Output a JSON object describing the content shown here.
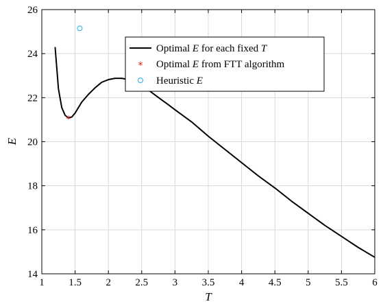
{
  "chart_data": {
    "type": "line",
    "xlabel": "T",
    "ylabel": "E",
    "xlim": [
      1,
      6
    ],
    "ylim": [
      14,
      26
    ],
    "xticks": [
      1,
      1.5,
      2,
      2.5,
      3,
      3.5,
      4,
      4.5,
      5,
      5.5,
      6
    ],
    "yticks": [
      14,
      16,
      18,
      20,
      22,
      24,
      26
    ],
    "xtick_labels": [
      "1",
      "1.5",
      "2",
      "2.5",
      "3",
      "3.5",
      "4",
      "4.5",
      "5",
      "5.5",
      "6"
    ],
    "ytick_labels": [
      "14",
      "16",
      "18",
      "20",
      "22",
      "24",
      "26"
    ],
    "grid": true,
    "legend_position": "top-right",
    "colors": {
      "optimal_line": "#000000",
      "fft_marker": "#e41a1c",
      "heuristic_marker": "#1fb2e6"
    },
    "series": [
      {
        "name": "Optimal E for each fixed T",
        "type": "line",
        "x": [
          1.2,
          1.25,
          1.3,
          1.35,
          1.4,
          1.45,
          1.5,
          1.55,
          1.6,
          1.7,
          1.8,
          1.9,
          2.0,
          2.1,
          2.2,
          2.3,
          2.4,
          2.5,
          2.6,
          2.7,
          2.8,
          2.9,
          3.0,
          3.25,
          3.5,
          3.75,
          4.0,
          4.25,
          4.5,
          4.75,
          5.0,
          5.25,
          5.5,
          5.75,
          6.0
        ],
        "y": [
          24.3,
          22.4,
          21.55,
          21.2,
          21.08,
          21.12,
          21.3,
          21.55,
          21.8,
          22.15,
          22.45,
          22.7,
          22.82,
          22.88,
          22.88,
          22.82,
          22.72,
          22.55,
          22.35,
          22.12,
          21.9,
          21.68,
          21.45,
          20.9,
          20.25,
          19.65,
          19.05,
          18.45,
          17.9,
          17.3,
          16.75,
          16.2,
          15.7,
          15.2,
          14.75
        ]
      },
      {
        "name": "Optimal E from FTT algorithm",
        "type": "scatter",
        "marker": "star",
        "x": [
          1.4
        ],
        "y": [
          21.08
        ]
      },
      {
        "name": "Heuristic E",
        "type": "scatter",
        "marker": "circle",
        "x": [
          1.57
        ],
        "y": [
          25.15
        ]
      }
    ],
    "legend": {
      "entries": [
        {
          "prefix": "Optimal ",
          "var": "E",
          "suffix": " for each fixed ",
          "var2": "T"
        },
        {
          "prefix": "Optimal ",
          "var": "E",
          "suffix": " from FTT algorithm",
          "var2": ""
        },
        {
          "prefix": "Heuristic ",
          "var": "E",
          "suffix": "",
          "var2": ""
        }
      ]
    }
  }
}
